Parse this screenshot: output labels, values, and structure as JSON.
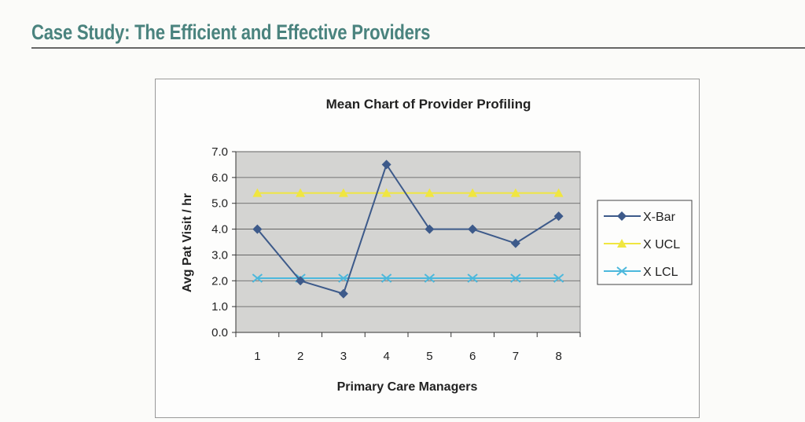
{
  "document": {
    "title": "Case Study: The Efficient and Effective Providers"
  },
  "chart_data": {
    "type": "line",
    "title": "Mean Chart of Provider Profiling",
    "xlabel": "Primary Care Managers",
    "ylabel": "Avg Pat Visit / hr",
    "categories": [
      "1",
      "2",
      "3",
      "4",
      "5",
      "6",
      "7",
      "8"
    ],
    "ylim": [
      0,
      7
    ],
    "yticks": [
      "0.0",
      "1.0",
      "2.0",
      "3.0",
      "4.0",
      "5.0",
      "6.0",
      "7.0"
    ],
    "grid": true,
    "legend_position": "right",
    "plot_background": "#d4d4d2",
    "series": [
      {
        "name": "X-Bar",
        "values": [
          4.0,
          2.0,
          1.5,
          6.5,
          4.0,
          4.0,
          3.45,
          4.5
        ],
        "color": "#3d5a8a",
        "marker": "diamond"
      },
      {
        "name": "X UCL",
        "values": [
          5.4,
          5.4,
          5.4,
          5.4,
          5.4,
          5.4,
          5.4,
          5.4
        ],
        "color": "#f0e640",
        "marker": "triangle"
      },
      {
        "name": "X LCL",
        "values": [
          2.1,
          2.1,
          2.1,
          2.1,
          2.1,
          2.1,
          2.1,
          2.1
        ],
        "color": "#4cb8dc",
        "marker": "x"
      }
    ]
  }
}
